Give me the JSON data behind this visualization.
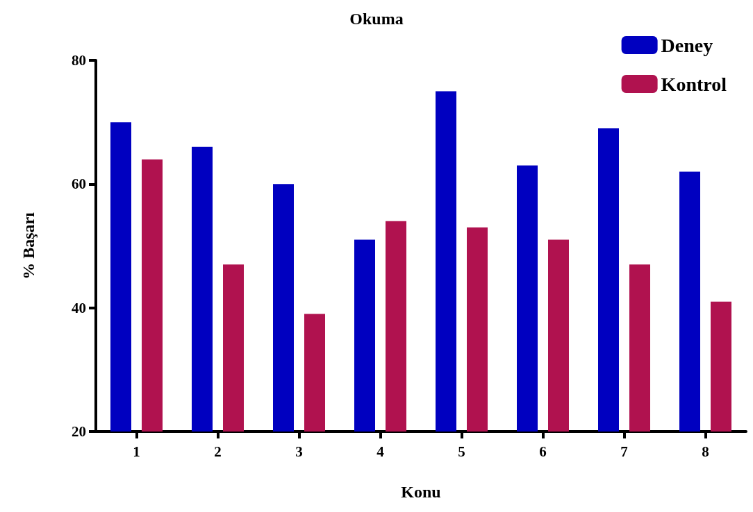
{
  "chart_data": {
    "type": "bar",
    "title": "Okuma",
    "xlabel": "Konu",
    "ylabel": "% Başarı",
    "categories": [
      "1",
      "2",
      "3",
      "4",
      "5",
      "6",
      "7",
      "8"
    ],
    "series": [
      {
        "name": "Deney",
        "color": "#0000c0",
        "values": [
          70,
          66,
          60,
          51,
          75,
          63,
          69,
          62
        ]
      },
      {
        "name": "Kontrol",
        "color": "#b0124f",
        "values": [
          64,
          47,
          39,
          54,
          53,
          51,
          47,
          41
        ]
      }
    ],
    "ylim": [
      20,
      80
    ],
    "yticks": [
      20,
      40,
      60,
      80
    ],
    "grid": false,
    "legend": "top right"
  }
}
